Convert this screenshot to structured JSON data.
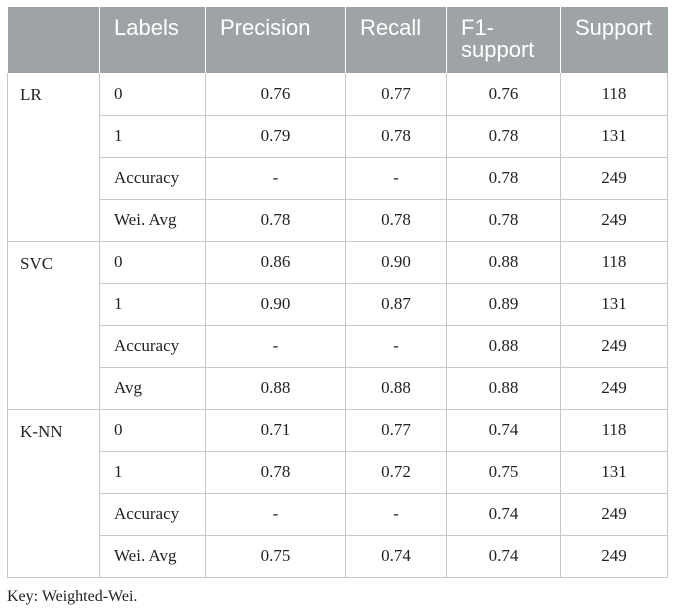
{
  "headers": [
    "",
    "Labels",
    "Precision",
    "Recall",
    "F1-\nsupport",
    "Support"
  ],
  "groups": [
    {
      "model": "LR",
      "rows": [
        {
          "label": "0",
          "precision": "0.76",
          "recall": "0.77",
          "f1": "0.76",
          "support": "118"
        },
        {
          "label": "1",
          "precision": "0.79",
          "recall": "0.78",
          "f1": "0.78",
          "support": "131"
        },
        {
          "label": "Accuracy",
          "precision": "-",
          "recall": "-",
          "f1": "0.78",
          "support": "249"
        },
        {
          "label": "Wei. Avg",
          "precision": "0.78",
          "recall": "0.78",
          "f1": "0.78",
          "support": "249"
        }
      ]
    },
    {
      "model": "SVC",
      "rows": [
        {
          "label": "0",
          "precision": "0.86",
          "recall": "0.90",
          "f1": "0.88",
          "support": "118"
        },
        {
          "label": "1",
          "precision": "0.90",
          "recall": "0.87",
          "f1": "0.89",
          "support": "131"
        },
        {
          "label": "Accuracy",
          "precision": "-",
          "recall": "-",
          "f1": "0.88",
          "support": "249"
        },
        {
          "label": "Avg",
          "precision": "0.88",
          "recall": "0.88",
          "f1": "0.88",
          "support": "249"
        }
      ]
    },
    {
      "model": "K-NN",
      "rows": [
        {
          "label": "0",
          "precision": "0.71",
          "recall": "0.77",
          "f1": "0.74",
          "support": "118"
        },
        {
          "label": "1",
          "precision": "0.78",
          "recall": "0.72",
          "f1": "0.75",
          "support": "131"
        },
        {
          "label": "Accuracy",
          "precision": "-",
          "recall": "-",
          "f1": "0.74",
          "support": "249"
        },
        {
          "label": "Wei. Avg",
          "precision": "0.75",
          "recall": "0.74",
          "f1": "0.74",
          "support": "249"
        }
      ]
    }
  ],
  "footnote": "Key: Weighted-Wei.",
  "colors": {
    "header_bg": "#9ea3a6",
    "header_text": "#ffffff",
    "border": "#c8c8c8"
  }
}
